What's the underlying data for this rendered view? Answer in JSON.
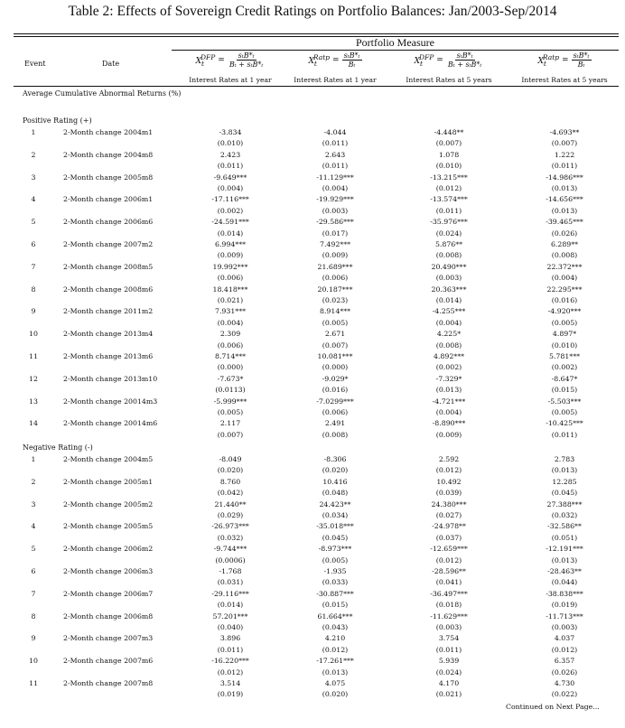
{
  "title": "Table 2: Effects of Sovereign Credit Ratings on Portfolio Balances: Jan/2003-Sep/2014",
  "portfolio_measure": "Portfolio Measure",
  "headers": {
    "event": "Event",
    "date": "Date",
    "columns": [
      {
        "var": "X",
        "sub": "t",
        "sup": "DFP",
        "eq": "=",
        "num": "sₜB*ₜ",
        "den": "Bₜ + sₜB*ₜ",
        "label": "Interest Rates at 1 year"
      },
      {
        "var": "X",
        "sub": "t",
        "sup": "Ratp",
        "eq": "=",
        "num": "sₜB*ₜ",
        "den": "Bₜ",
        "label": "Interest Rates at 1 year"
      },
      {
        "var": "X",
        "sub": "t",
        "sup": "DFP",
        "eq": "=",
        "num": "sₜB*ₜ",
        "den": "Bₜ + sₜB*ₜ",
        "label": "Interest Rates at 5 years"
      },
      {
        "var": "X",
        "sub": "t",
        "sup": "Ratp",
        "eq": "=",
        "num": "sₜB*ₜ",
        "den": "Bₜ",
        "label": "Interest Rates at 5 years"
      }
    ]
  },
  "caption": "Average Cumulative Abnormal Returns (%)",
  "positive": {
    "label": "Positive Rating (+)",
    "rows": [
      {
        "event": "1",
        "date": "2-Month change 2004m1",
        "values": [
          "-3.834",
          "-4.044",
          "-4.448**",
          "-4.693**"
        ],
        "se": [
          "(0.010)",
          "(0.011)",
          "(0.007)",
          "(0.007)"
        ]
      },
      {
        "event": "2",
        "date": "2-Month change 2004m8",
        "values": [
          "2.423",
          "2.643",
          "1.078",
          "1.222"
        ],
        "se": [
          "(0.011)",
          "(0.011)",
          "(0.010)",
          "(0.011)"
        ]
      },
      {
        "event": "3",
        "date": "2-Month change 2005m8",
        "values": [
          "-9.649***",
          "-11.129***",
          "-13.215***",
          "-14.986***"
        ],
        "se": [
          "(0.004)",
          "(0.004)",
          "(0.012)",
          "(0.013)"
        ]
      },
      {
        "event": "4",
        "date": "2-Month change 2006m1",
        "values": [
          "-17.116***",
          "-19.929***",
          "-13.574***",
          "-14.656***"
        ],
        "se": [
          "(0.002)",
          "(0.003)",
          "(0.011)",
          "(0.013)"
        ]
      },
      {
        "event": "5",
        "date": "2-Month change 2006m6",
        "values": [
          "-24.591***",
          "-29.586***",
          "-35.976***",
          "-39.465***"
        ],
        "se": [
          "(0.014)",
          "(0.017)",
          "(0.024)",
          "(0.026)"
        ]
      },
      {
        "event": "6",
        "date": "2-Month change 2007m2",
        "values": [
          "6.994***",
          "7.492***",
          "5.876**",
          "6.289**"
        ],
        "se": [
          "(0.009)",
          "(0.009)",
          "(0.008)",
          "(0.008)"
        ]
      },
      {
        "event": "7",
        "date": "2-Month change 2008m5",
        "values": [
          "19.992***",
          "21.689***",
          "20.490***",
          "22.372***"
        ],
        "se": [
          "(0.006)",
          "(0.006)",
          "(0.003)",
          "(0.004)"
        ]
      },
      {
        "event": "8",
        "date": "2-Month change 2008m6",
        "values": [
          "18.418***",
          "20.187***",
          "20.363***",
          "22.295***"
        ],
        "se": [
          "(0.021)",
          "(0.023)",
          "(0.014)",
          "(0.016)"
        ]
      },
      {
        "event": "9",
        "date": "2-Month change 2011m2",
        "values": [
          "7.931***",
          "8.914***",
          "-4.255***",
          "-4.920***"
        ],
        "se": [
          "(0.004)",
          "(0.005)",
          "(0.004)",
          "(0.005)"
        ]
      },
      {
        "event": "10",
        "date": "2-Month change 2013m4",
        "values": [
          "2.309",
          "2.671",
          "4.225*",
          "4.897*"
        ],
        "se": [
          "(0.006)",
          "(0.007)",
          "(0.008)",
          "(0.010)"
        ]
      },
      {
        "event": "11",
        "date": "2-Month change 2013m6",
        "values": [
          "8.714***",
          "10.081***",
          "4.892***",
          "5.781***"
        ],
        "se": [
          "(0.000)",
          "(0.000)",
          "(0.002)",
          "(0.002)"
        ]
      },
      {
        "event": "12",
        "date": "2-Month change 2013m10",
        "values": [
          "-7.673*",
          "-9.029*",
          "-7.329*",
          "-8.647*"
        ],
        "se": [
          "(0.0113)",
          "(0.016)",
          "(0.013)",
          "(0.015)"
        ]
      },
      {
        "event": "13",
        "date": "2-Month change 20014m3",
        "values": [
          "-5.999***",
          "-7.0299***",
          "-4.721***",
          "-5.503***"
        ],
        "se": [
          "(0.005)",
          "(0.006)",
          "(0.004)",
          "(0.005)"
        ]
      },
      {
        "event": "14",
        "date": "2-Month change 20014m6",
        "values": [
          "2.117",
          "2.491",
          "-8.890***",
          "-10.425***"
        ],
        "se": [
          "(0.007)",
          "(0.008)",
          "(0.009)",
          "(0.011)"
        ]
      }
    ]
  },
  "negative": {
    "label": "Negative Rating (-)",
    "rows": [
      {
        "event": "1",
        "date": "2-Month change 2004m5",
        "values": [
          "-8.049",
          "-8.306",
          "2.592",
          "2.783"
        ],
        "se": [
          "(0.020)",
          "(0.020)",
          "(0.012)",
          "(0.013)"
        ]
      },
      {
        "event": "2",
        "date": "2-Month change 2005m1",
        "values": [
          "8.760",
          "10.416",
          "10.492",
          "12.285"
        ],
        "se": [
          "(0.042)",
          "(0.048)",
          "(0.039)",
          "(0.045)"
        ]
      },
      {
        "event": "3",
        "date": "2-Month change 2005m2",
        "values": [
          "21.440**",
          "24.423**",
          "24.380***",
          "27.388***"
        ],
        "se": [
          "(0.029)",
          "(0.034)",
          "(0.027)",
          "(0.032)"
        ]
      },
      {
        "event": "4",
        "date": "2-Month change 2005m5",
        "values": [
          "-26.973***",
          "-35.018***",
          "-24.978**",
          "-32.586**"
        ],
        "se": [
          "(0.032)",
          "(0.045)",
          "(0.037)",
          "(0.051)"
        ]
      },
      {
        "event": "5",
        "date": "2-Month change 2006m2",
        "values": [
          "-9.744***",
          "-8.973***",
          "-12.659***",
          "-12.191***"
        ],
        "se": [
          "(0.0006)",
          "(0.005)",
          "(0.012)",
          "(0.013)"
        ]
      },
      {
        "event": "6",
        "date": "2-Month change 2006m3",
        "values": [
          "-1.768",
          "-1.935",
          "-28.596**",
          "-28.463**"
        ],
        "se": [
          "(0.031)",
          "(0.033)",
          "(0.041)",
          "(0.044)"
        ]
      },
      {
        "event": "7",
        "date": "2-Month change 2006m7",
        "values": [
          "-29.116***",
          "-30.887***",
          "-36.497***",
          "-38.838***"
        ],
        "se": [
          "(0.014)",
          "(0.015)",
          "(0.018)",
          "(0.019)"
        ]
      },
      {
        "event": "8",
        "date": "2-Month change 2006m8",
        "values": [
          "57.201***",
          "61.664***",
          "-11.629***",
          "-11.713***"
        ],
        "se": [
          "(0.040)",
          "(0.043)",
          "(0.003)",
          "(0.003)"
        ]
      },
      {
        "event": "9",
        "date": "2-Month change 2007m3",
        "values": [
          "3.896",
          "4.210",
          "3.754",
          "4.037"
        ],
        "se": [
          "(0.011)",
          "(0.012)",
          "(0.011)",
          "(0.012)"
        ]
      },
      {
        "event": "10",
        "date": "2-Month change 2007m6",
        "values": [
          "-16.220***",
          "-17.261***",
          "5.939",
          "6.357"
        ],
        "se": [
          "(0.012)",
          "(0.013)",
          "(0.024)",
          "(0.026)"
        ]
      },
      {
        "event": "11",
        "date": "2-Month change 2007m8",
        "values": [
          "3.514",
          "4.075",
          "4.170",
          "4.730"
        ],
        "se": [
          "(0.019)",
          "(0.020)",
          "(0.021)",
          "(0.022)"
        ]
      }
    ]
  },
  "continued": "Continued on Next Page..."
}
